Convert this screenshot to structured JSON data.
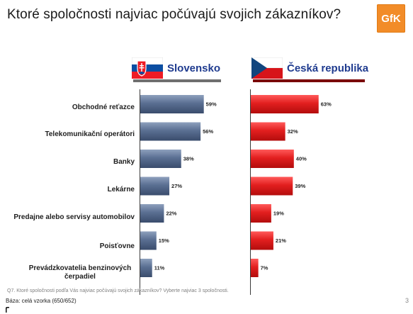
{
  "title": "Ktoré spoločnosti najviac počúvajú svojich zákazníkov?",
  "logo_text": "GfK",
  "slovakia": {
    "name": "Slovensko"
  },
  "czech": {
    "name": "Česká republika"
  },
  "footnote": "Q7. Ktoré spoločnosti podľa Vás najviac počúvajú svojich zákazníkov? Vyberte najviac 3 spoločnosti.",
  "base": "Báza: celá vzorka (650/652)",
  "page_number": "3",
  "colors": {
    "slovakia_bar": "#5a6f92",
    "czech_bar": "#e21f1f",
    "header_line_sk": "#6f6f6f",
    "header_line_cz": "#7a0000",
    "logo": "#f28c28"
  },
  "chart_data": {
    "type": "bar",
    "orientation": "horizontal",
    "categories": [
      "Obchodné reťazce",
      "Telekomunikační operátori",
      "Banky",
      "Lekárne",
      "Predajne alebo servisy automobilov",
      "Poisťovne",
      "Prevádzkovatelia benzinových čerpadiel"
    ],
    "series": [
      {
        "name": "Slovensko",
        "values": [
          59,
          56,
          38,
          27,
          22,
          15,
          11
        ]
      },
      {
        "name": "Česká republika",
        "values": [
          63,
          32,
          40,
          39,
          19,
          21,
          7
        ]
      }
    ],
    "value_suffix": "%",
    "xlim": [
      0,
      100
    ]
  }
}
